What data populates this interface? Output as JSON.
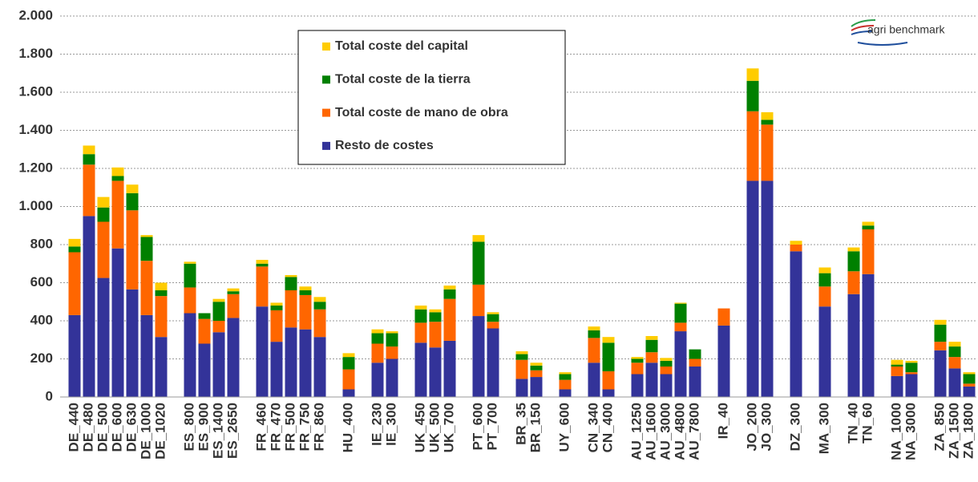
{
  "chart_data": {
    "type": "stacked_bar",
    "logo": "agri benchmark",
    "categories": [
      "DE_440",
      "DE_480",
      "DE_500",
      "DE_600",
      "DE_630",
      "DE_1000",
      "DE_1020",
      null,
      "ES_800",
      "ES_900",
      "ES_1400",
      "ES_2650",
      null,
      "FR_460",
      "FR_470",
      "FR_500",
      "FR_750",
      "FR_860",
      null,
      "HU_400",
      null,
      "IE_230",
      "IE_300",
      null,
      "UK_450",
      "UK_500",
      "UK_700",
      null,
      "PT_600",
      "PT_700",
      null,
      "BR_35",
      "BR_150",
      null,
      "UY_600",
      null,
      "CN_340",
      "CN_400",
      null,
      "AU_1250",
      "AU_1600",
      "AU_3000",
      "AU_4800",
      "AU_7800",
      null,
      "IR_40",
      null,
      "JO_200",
      "JO_300",
      null,
      "DZ_300",
      null,
      "MA_300",
      null,
      "TN_40",
      "TN_60",
      null,
      "NA_1000",
      "NA_3000",
      null,
      "ZA_850",
      "ZA_1500",
      "ZA_1800"
    ],
    "series": [
      {
        "name": "Resto de costes",
        "color": "#333399",
        "values": [
          430,
          950,
          625,
          780,
          565,
          430,
          315,
          null,
          440,
          280,
          340,
          415,
          null,
          475,
          290,
          365,
          355,
          315,
          null,
          40,
          null,
          180,
          200,
          null,
          285,
          260,
          295,
          null,
          425,
          360,
          null,
          95,
          105,
          null,
          40,
          null,
          180,
          40,
          null,
          120,
          180,
          120,
          345,
          160,
          null,
          375,
          null,
          1135,
          1135,
          null,
          765,
          null,
          475,
          null,
          540,
          645,
          null,
          110,
          120,
          null,
          245,
          150,
          55
        ]
      },
      {
        "name": "Total coste de mano de obra",
        "color": "#ff6600",
        "values": [
          330,
          270,
          295,
          355,
          415,
          285,
          215,
          null,
          135,
          130,
          60,
          125,
          null,
          210,
          165,
          195,
          180,
          145,
          null,
          105,
          null,
          100,
          65,
          null,
          105,
          135,
          220,
          null,
          165,
          35,
          null,
          100,
          35,
          null,
          50,
          null,
          130,
          95,
          null,
          60,
          55,
          40,
          45,
          40,
          null,
          90,
          null,
          365,
          295,
          null,
          35,
          null,
          105,
          null,
          120,
          235,
          null,
          50,
          10,
          null,
          45,
          60,
          15
        ]
      },
      {
        "name": "Total coste de la tierra",
        "color": "#008000",
        "values": [
          30,
          55,
          75,
          25,
          90,
          125,
          30,
          null,
          125,
          30,
          100,
          15,
          null,
          15,
          25,
          70,
          25,
          40,
          null,
          65,
          null,
          55,
          70,
          null,
          70,
          50,
          50,
          null,
          225,
          40,
          null,
          30,
          25,
          null,
          30,
          null,
          40,
          150,
          null,
          20,
          65,
          30,
          100,
          50,
          null,
          0,
          null,
          160,
          25,
          null,
          0,
          null,
          70,
          null,
          105,
          20,
          null,
          10,
          50,
          null,
          90,
          55,
          50
        ]
      },
      {
        "name": "Total coste del capital",
        "color": "#ffcc00",
        "values": [
          40,
          45,
          55,
          45,
          45,
          10,
          40,
          null,
          10,
          0,
          15,
          15,
          null,
          20,
          15,
          10,
          20,
          25,
          null,
          20,
          null,
          20,
          10,
          null,
          20,
          15,
          20,
          null,
          35,
          10,
          null,
          15,
          15,
          null,
          10,
          null,
          20,
          30,
          null,
          10,
          20,
          15,
          5,
          0,
          null,
          0,
          null,
          65,
          40,
          null,
          20,
          null,
          30,
          null,
          20,
          20,
          null,
          25,
          10,
          null,
          25,
          25,
          10
        ]
      }
    ],
    "ylim": [
      0,
      2000
    ],
    "yticks": [
      0,
      200,
      400,
      600,
      800,
      {
        "value": 1000,
        "label": "1.000"
      },
      {
        "value": 1200,
        "label": "1.200"
      },
      {
        "value": 1400,
        "label": "1.400"
      },
      {
        "value": 1600,
        "label": "1.600"
      },
      {
        "value": 1800,
        "label": "1.800"
      },
      {
        "value": 2000,
        "label": "2.000"
      }
    ],
    "grid": true
  }
}
